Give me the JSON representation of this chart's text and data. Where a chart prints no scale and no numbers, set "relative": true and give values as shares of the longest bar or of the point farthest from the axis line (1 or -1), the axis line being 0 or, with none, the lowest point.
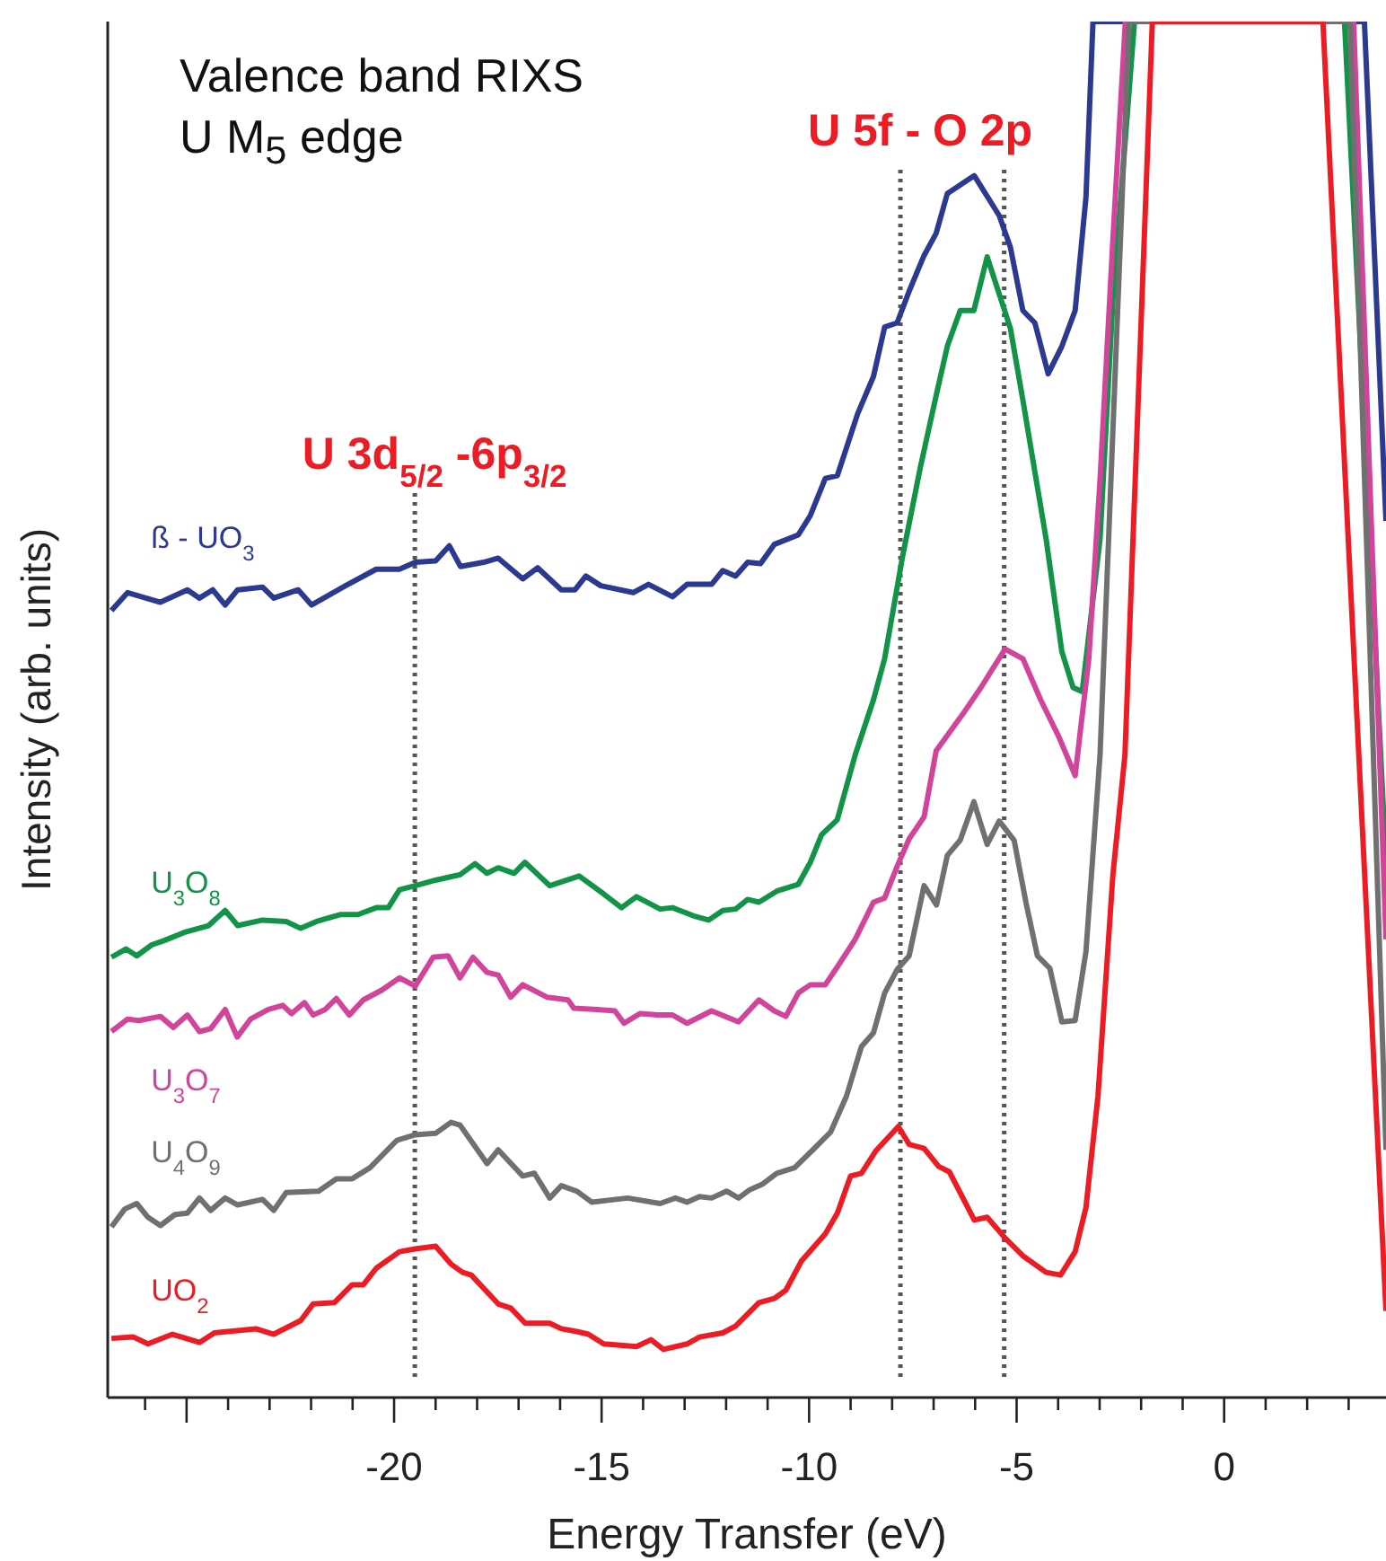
{
  "chart_data": {
    "type": "line",
    "title": "Valence band RIXS",
    "subtitle": "U M$_{5}$ edge",
    "xlabel": "Energy Transfer (eV)",
    "ylabel": "Intensity (arb. units)",
    "relative": true,
    "xlim": [
      -26.9,
      3.9
    ],
    "xticks": [
      {
        "value": -26,
        "label": null
      },
      {
        "value": -25,
        "label": null
      },
      {
        "value": -24,
        "label": null
      },
      {
        "value": -23,
        "label": null
      },
      {
        "value": -22,
        "label": null
      },
      {
        "value": -21,
        "label": null
      },
      -20,
      {
        "value": -19,
        "label": null
      },
      {
        "value": -18,
        "label": null
      },
      {
        "value": -17,
        "label": null
      },
      {
        "value": -16,
        "label": null
      },
      -15,
      {
        "value": -14,
        "label": null
      },
      {
        "value": -13,
        "label": null
      },
      {
        "value": -12,
        "label": null
      },
      {
        "value": -11,
        "label": null
      },
      -10,
      {
        "value": -9,
        "label": null
      },
      {
        "value": -8,
        "label": null
      },
      {
        "value": -7,
        "label": null
      },
      {
        "value": -6,
        "label": null
      },
      -5,
      {
        "value": -4,
        "label": null
      },
      {
        "value": -3,
        "label": null
      },
      {
        "value": -2,
        "label": null
      },
      {
        "value": -1,
        "label": null
      },
      0,
      {
        "value": 1,
        "label": null
      },
      {
        "value": 2,
        "label": null
      },
      {
        "value": 3,
        "label": null
      }
    ],
    "ref_lines": [
      {
        "axis": "x",
        "value": -19.5,
        "color": "#555555",
        "line_style": "dotted",
        "label": "U 3d$_{5/2}$ -6p$_{3/2}$"
      },
      {
        "axis": "x",
        "value": -7.8,
        "color": "#555555",
        "line_style": "dotted",
        "label": "U 5f - O 2p"
      },
      {
        "axis": "x",
        "value": -5.3,
        "color": "#555555",
        "line_style": "dotted"
      }
    ],
    "series": [
      {
        "name": "ß - UO$_{3}$",
        "color": "#2b3990",
        "x": [
          -26.81,
          -26.42,
          -25.63,
          -24.98,
          -24.69,
          -24.37,
          -24.07,
          -23.77,
          -23.17,
          -22.9,
          -22.31,
          -21.99,
          -21.17,
          -20.43,
          -19.87,
          -19.49,
          -19.0,
          -18.67,
          -18.4,
          -17.84,
          -17.49,
          -16.9,
          -16.54,
          -15.97,
          -15.64,
          -15.38,
          -15.02,
          -14.24,
          -13.87,
          -13.29,
          -12.94,
          -12.35,
          -12.08,
          -11.77,
          -11.48,
          -11.17,
          -10.84,
          -10.26,
          -9.97,
          -9.61,
          -9.32,
          -8.83,
          -8.45,
          -8.18,
          -7.88,
          -7.59,
          -7.23,
          -6.94,
          -6.67,
          -6.02,
          -5.42,
          -5.15,
          -4.85,
          -4.56,
          -4.24,
          -3.91,
          -3.59,
          -3.33,
          -3.16,
          3.38,
          3.9
        ],
        "values": [
          0.572,
          0.585,
          0.578,
          0.587,
          0.581,
          0.587,
          0.576,
          0.587,
          0.589,
          0.581,
          0.587,
          0.576,
          0.59,
          0.602,
          0.602,
          0.607,
          0.608,
          0.619,
          0.604,
          0.607,
          0.61,
          0.595,
          0.603,
          0.587,
          0.587,
          0.597,
          0.59,
          0.585,
          0.591,
          0.582,
          0.591,
          0.591,
          0.601,
          0.597,
          0.607,
          0.606,
          0.62,
          0.627,
          0.641,
          0.668,
          0.67,
          0.715,
          0.742,
          0.778,
          0.781,
          0.804,
          0.83,
          0.846,
          0.875,
          0.888,
          0.859,
          0.836,
          0.79,
          0.781,
          0.744,
          0.764,
          0.79,
          0.872,
          1,
          1,
          0.637
        ]
      },
      {
        "name": "U$_{3}$O$_{8}$",
        "color": "#119447",
        "x": [
          -26.81,
          -26.46,
          -26.2,
          -25.84,
          -25.55,
          -25.06,
          -24.47,
          -24.07,
          -23.77,
          -23.17,
          -22.6,
          -22.25,
          -21.87,
          -21.3,
          -20.87,
          -20.43,
          -20.14,
          -19.87,
          -19.49,
          -19.0,
          -18.41,
          -18.05,
          -17.76,
          -17.49,
          -17.11,
          -16.85,
          -16.25,
          -15.54,
          -14.95,
          -14.52,
          -14.16,
          -13.59,
          -13.29,
          -12.78,
          -12.42,
          -12.08,
          -11.77,
          -11.48,
          -11.21,
          -10.78,
          -10.26,
          -9.97,
          -9.7,
          -9.32,
          -8.89,
          -8.45,
          -8.18,
          -7.75,
          -7.32,
          -6.94,
          -6.67,
          -6.36,
          -6.03,
          -5.71,
          -5.15,
          -4.85,
          -4.29,
          -3.91,
          -3.64,
          -3.42,
          -2.99,
          -2.68,
          -2.16,
          2.9,
          3.9
        ],
        "values": [
          0.32,
          0.326,
          0.321,
          0.329,
          0.332,
          0.338,
          0.343,
          0.354,
          0.343,
          0.347,
          0.346,
          0.341,
          0.346,
          0.351,
          0.351,
          0.356,
          0.356,
          0.369,
          0.372,
          0.376,
          0.38,
          0.388,
          0.381,
          0.385,
          0.381,
          0.389,
          0.372,
          0.379,
          0.366,
          0.356,
          0.364,
          0.355,
          0.356,
          0.35,
          0.347,
          0.354,
          0.355,
          0.362,
          0.36,
          0.368,
          0.373,
          0.389,
          0.409,
          0.42,
          0.467,
          0.507,
          0.537,
          0.611,
          0.676,
          0.728,
          0.764,
          0.79,
          0.79,
          0.829,
          0.777,
          0.725,
          0.624,
          0.542,
          0.516,
          0.513,
          0.624,
          0.798,
          1,
          1,
          0.389
        ]
      },
      {
        "name": "U$_{3}$O$_{7}$",
        "color": "#d2449c",
        "x": [
          -26.81,
          -26.42,
          -26.15,
          -25.63,
          -25.32,
          -24.98,
          -24.69,
          -24.42,
          -24.07,
          -23.78,
          -23.46,
          -23.03,
          -22.68,
          -22.47,
          -22.16,
          -21.95,
          -21.66,
          -21.39,
          -21.08,
          -20.74,
          -20.3,
          -19.87,
          -19.49,
          -19.06,
          -18.7,
          -18.41,
          -18.1,
          -17.76,
          -17.49,
          -17.19,
          -16.9,
          -16.32,
          -15.81,
          -15.67,
          -15.11,
          -14.68,
          -14.46,
          -14.08,
          -13.65,
          -13.29,
          -12.94,
          -12.35,
          -11.7,
          -11.21,
          -10.84,
          -10.56,
          -10.26,
          -9.97,
          -9.61,
          -9.32,
          -8.89,
          -8.45,
          -8.18,
          -7.88,
          -7.59,
          -7.23,
          -6.94,
          -6.29,
          -5.86,
          -5.28,
          -4.85,
          -4.42,
          -3.98,
          -3.59,
          -3.26,
          -2.99,
          -2.68,
          -2.38,
          3.12,
          3.9
        ],
        "values": [
          0.266,
          0.275,
          0.274,
          0.277,
          0.269,
          0.278,
          0.266,
          0.268,
          0.282,
          0.262,
          0.275,
          0.282,
          0.285,
          0.279,
          0.287,
          0.278,
          0.282,
          0.29,
          0.278,
          0.289,
          0.296,
          0.305,
          0.299,
          0.32,
          0.321,
          0.305,
          0.32,
          0.309,
          0.307,
          0.291,
          0.3,
          0.291,
          0.289,
          0.283,
          0.282,
          0.281,
          0.272,
          0.279,
          0.278,
          0.278,
          0.272,
          0.281,
          0.273,
          0.289,
          0.281,
          0.277,
          0.294,
          0.3,
          0.3,
          0.313,
          0.333,
          0.36,
          0.363,
          0.386,
          0.406,
          0.422,
          0.47,
          0.497,
          0.516,
          0.544,
          0.537,
          0.507,
          0.48,
          0.452,
          0.537,
          0.667,
          0.842,
          1,
          1,
          0.333
        ]
      },
      {
        "name": "U$_{4}$O$_{9}$",
        "color": "#707070",
        "x": [
          -26.81,
          -26.49,
          -26.2,
          -25.93,
          -25.63,
          -25.28,
          -24.98,
          -24.69,
          -24.42,
          -24.07,
          -23.77,
          -23.17,
          -22.9,
          -22.6,
          -21.82,
          -21.39,
          -21.01,
          -20.58,
          -19.93,
          -19.49,
          -19.0,
          -18.63,
          -18.41,
          -17.76,
          -17.49,
          -16.9,
          -16.62,
          -16.25,
          -15.97,
          -15.6,
          -15.24,
          -14.37,
          -13.59,
          -13.22,
          -12.94,
          -12.64,
          -12.35,
          -11.99,
          -11.7,
          -11.43,
          -11.13,
          -10.78,
          -10.35,
          -9.91,
          -9.48,
          -9.1,
          -8.74,
          -8.45,
          -8.18,
          -7.88,
          -7.59,
          -7.23,
          -6.93,
          -6.67,
          -6.36,
          -6.03,
          -5.71,
          -5.42,
          -5.06,
          -4.77,
          -4.5,
          -4.2,
          -3.91,
          -3.59,
          -3.33,
          -2.99,
          -2.29,
          3.03,
          3.9
        ],
        "values": [
          0.124,
          0.137,
          0.141,
          0.131,
          0.125,
          0.133,
          0.134,
          0.145,
          0.136,
          0.145,
          0.14,
          0.144,
          0.136,
          0.149,
          0.15,
          0.159,
          0.159,
          0.167,
          0.187,
          0.191,
          0.192,
          0.2,
          0.198,
          0.17,
          0.18,
          0.161,
          0.163,
          0.145,
          0.154,
          0.15,
          0.142,
          0.145,
          0.141,
          0.145,
          0.142,
          0.146,
          0.145,
          0.15,
          0.145,
          0.151,
          0.155,
          0.163,
          0.167,
          0.18,
          0.193,
          0.219,
          0.255,
          0.265,
          0.294,
          0.311,
          0.321,
          0.372,
          0.358,
          0.394,
          0.405,
          0.433,
          0.402,
          0.419,
          0.405,
          0.359,
          0.321,
          0.312,
          0.273,
          0.274,
          0.324,
          0.467,
          1,
          1,
          0.18
        ]
      },
      {
        "name": "UO$_{2}$",
        "color": "#ed1c24",
        "x": [
          -26.81,
          -26.28,
          -25.93,
          -25.34,
          -24.69,
          -24.33,
          -23.33,
          -22.9,
          -22.25,
          -21.95,
          -21.44,
          -21.01,
          -20.74,
          -20.43,
          -19.87,
          -19.49,
          -19.0,
          -18.63,
          -18.35,
          -18.14,
          -17.49,
          -17.19,
          -16.84,
          -16.25,
          -15.97,
          -15.6,
          -15.32,
          -14.95,
          -14.16,
          -13.81,
          -13.51,
          -12.94,
          -12.64,
          -12.08,
          -11.77,
          -11.21,
          -10.84,
          -10.56,
          -10.19,
          -9.61,
          -9.32,
          -9.0,
          -8.74,
          -8.4,
          -7.85,
          -7.59,
          -7.23,
          -6.88,
          -6.62,
          -6.02,
          -5.71,
          -5.28,
          -4.85,
          -4.29,
          -3.94,
          -3.59,
          -3.33,
          -3.04,
          -2.68,
          -2.39,
          -1.73,
          2.38,
          3.9
        ],
        "values": [
          0.043,
          0.044,
          0.039,
          0.046,
          0.04,
          0.047,
          0.05,
          0.046,
          0.056,
          0.068,
          0.069,
          0.082,
          0.082,
          0.094,
          0.106,
          0.108,
          0.11,
          0.097,
          0.091,
          0.089,
          0.068,
          0.065,
          0.054,
          0.054,
          0.05,
          0.048,
          0.046,
          0.039,
          0.037,
          0.042,
          0.035,
          0.039,
          0.044,
          0.047,
          0.052,
          0.069,
          0.072,
          0.078,
          0.099,
          0.119,
          0.134,
          0.161,
          0.163,
          0.179,
          0.197,
          0.184,
          0.181,
          0.168,
          0.164,
          0.129,
          0.131,
          0.116,
          0.103,
          0.091,
          0.089,
          0.106,
          0.138,
          0.219,
          0.38,
          0.467,
          1,
          1,
          0.063
        ]
      }
    ]
  }
}
